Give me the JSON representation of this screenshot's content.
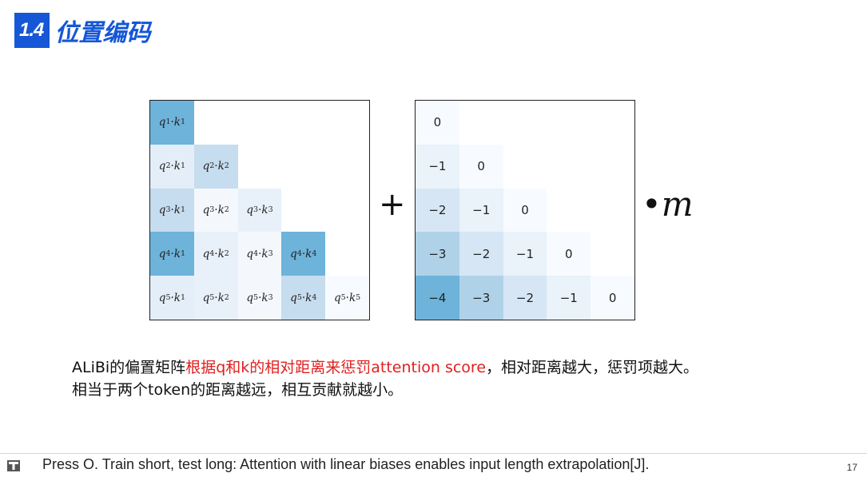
{
  "header": {
    "section_number": "1.4",
    "section_title": "位置编码",
    "accent_color": "#1557d6"
  },
  "figure": {
    "qk_matrix": {
      "rows": [
        [
          {
            "q": "q",
            "qi": "1",
            "k": "k",
            "ki": "1"
          }
        ],
        [
          {
            "q": "q",
            "qi": "2",
            "k": "k",
            "ki": "1"
          },
          {
            "q": "q",
            "qi": "2",
            "k": "k",
            "ki": "2"
          }
        ],
        [
          {
            "q": "q",
            "qi": "3",
            "k": "k",
            "ki": "1"
          },
          {
            "q": "q",
            "qi": "3",
            "k": "k",
            "ki": "2"
          },
          {
            "q": "q",
            "qi": "3",
            "k": "k",
            "ki": "3"
          }
        ],
        [
          {
            "q": "q",
            "qi": "4",
            "k": "k",
            "ki": "1"
          },
          {
            "q": "q",
            "qi": "4",
            "k": "k",
            "ki": "2"
          },
          {
            "q": "q",
            "qi": "4",
            "k": "k",
            "ki": "3"
          },
          {
            "q": "q",
            "qi": "4",
            "k": "k",
            "ki": "4"
          }
        ],
        [
          {
            "q": "q",
            "qi": "5",
            "k": "k",
            "ki": "1"
          },
          {
            "q": "q",
            "qi": "5",
            "k": "k",
            "ki": "2"
          },
          {
            "q": "q",
            "qi": "5",
            "k": "k",
            "ki": "3"
          },
          {
            "q": "q",
            "qi": "5",
            "k": "k",
            "ki": "4"
          },
          {
            "q": "q",
            "qi": "5",
            "k": "k",
            "ki": "5"
          }
        ]
      ],
      "colors": [
        [
          "#6db3da"
        ],
        [
          "#e3eef8",
          "#c6dcef"
        ],
        [
          "#c6dcef",
          "#f4f8fd",
          "#e8f1fa"
        ],
        [
          "#6db3da",
          "#e8f1fa",
          "#f4f8fd",
          "#6db3da"
        ],
        [
          "#e3eef8",
          "#e8f1fa",
          "#f4f8fd",
          "#c6dcef",
          "#f7fbff"
        ]
      ],
      "dot": "·"
    },
    "plus_symbol": "+",
    "bias_matrix": {
      "rows": [
        [
          "0"
        ],
        [
          "−1",
          "0"
        ],
        [
          "−2",
          "−1",
          "0"
        ],
        [
          "−3",
          "−2",
          "−1",
          "0"
        ],
        [
          "−4",
          "−3",
          "−2",
          "−1",
          "0"
        ]
      ],
      "colors": [
        [
          "#f7fbff"
        ],
        [
          "#eaf2fa",
          "#f7fbff"
        ],
        [
          "#d6e6f4",
          "#eaf2fa",
          "#f7fbff"
        ],
        [
          "#b0d2e8",
          "#d6e6f4",
          "#eaf2fa",
          "#f7fbff"
        ],
        [
          "#6db3da",
          "#b0d2e8",
          "#d6e6f4",
          "#eaf2fa",
          "#f7fbff"
        ]
      ]
    },
    "times_symbol": "•",
    "m_label": "m"
  },
  "description": {
    "line1_a": "ALiBi的偏置矩阵",
    "line1_red": "根据q和k的相对距离来惩罚attention score",
    "line1_b": "，相对距离越大，惩罚项越大。",
    "line2": "相当于两个token的距离越远，相互贡献就越小。",
    "highlight_color": "#e02020"
  },
  "footer": {
    "reference": "Press O. Train short, test long: Attention with linear biases enables input length extrapolation[J].",
    "page_number": "17"
  }
}
